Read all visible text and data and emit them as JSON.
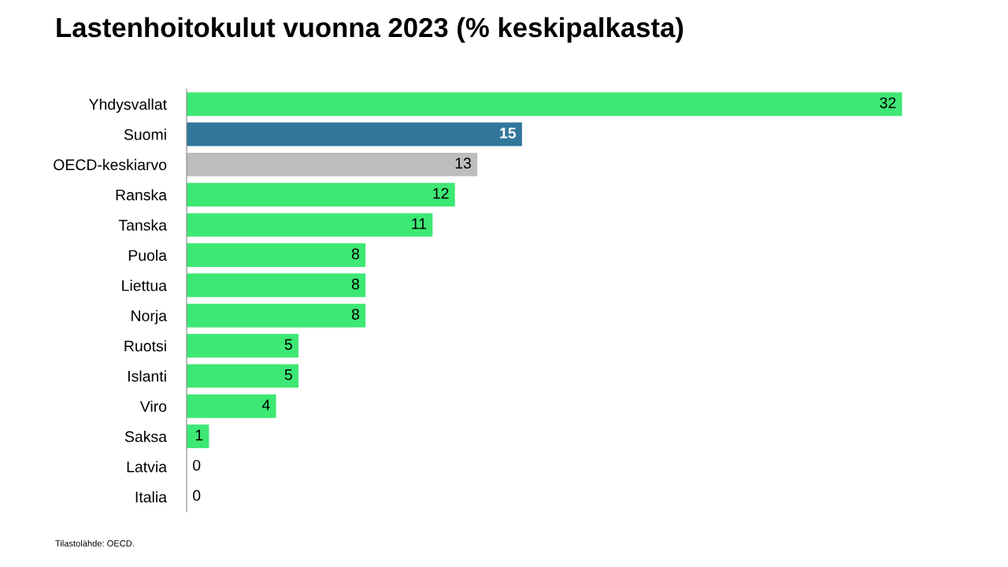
{
  "chart_data": {
    "type": "bar",
    "orientation": "horizontal",
    "title": "Lastenhoitokulut vuonna 2023 (% keskipalkasta)",
    "categories": [
      "Yhdysvallat",
      "Suomi",
      "OECD-keskiarvo",
      "Ranska",
      "Tanska",
      "Puola",
      "Liettua",
      "Norja",
      "Ruotsi",
      "Islanti",
      "Viro",
      "Saksa",
      "Latvia",
      "Italia"
    ],
    "values": [
      32,
      15,
      13,
      12,
      11,
      8,
      8,
      8,
      5,
      5,
      4,
      1,
      0,
      0
    ],
    "colors": [
      "#3de874",
      "#31779c",
      "#bdbdbd",
      "#3de874",
      "#3de874",
      "#3de874",
      "#3de874",
      "#3de874",
      "#3de874",
      "#3de874",
      "#3de874",
      "#3de874",
      "#3de874",
      "#3de874"
    ],
    "data_labels": true,
    "tick_labels": "y",
    "grid": false,
    "legend": false,
    "annotations": [
      "Tilastolähde: OECD."
    ]
  }
}
